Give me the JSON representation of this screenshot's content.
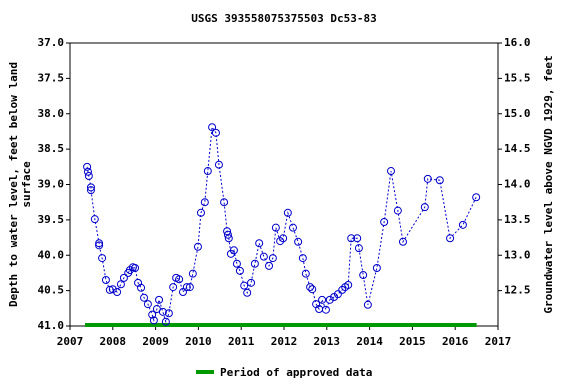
{
  "chart_data": {
    "type": "scatter",
    "title": "USGS 393558075375503 Dc53-83",
    "ylabel": "Depth to water level, feet below land surface",
    "y2label": "Groundwater level above NGVD 1929, feet",
    "xlim": [
      2007,
      2017
    ],
    "xticks": [
      2007,
      2008,
      2009,
      2010,
      2011,
      2012,
      2013,
      2014,
      2015,
      2016,
      2017
    ],
    "ylim": [
      41,
      37
    ],
    "y_inverted": true,
    "yticks": [
      {
        "value": 37,
        "label": "37.0"
      },
      {
        "value": 37.5,
        "label": "37.5"
      },
      {
        "value": 38,
        "label": "38.0"
      },
      {
        "value": 38.5,
        "label": "38.5"
      },
      {
        "value": 39,
        "label": "39.0"
      },
      {
        "value": 39.5,
        "label": "39.5"
      },
      {
        "value": 40,
        "label": "40.0"
      },
      {
        "value": 40.5,
        "label": "40.5"
      },
      {
        "value": 41,
        "label": "41.0"
      }
    ],
    "y2lim": [
      12,
      16
    ],
    "y2ticks": [
      {
        "value": 12.5,
        "label": "12.5"
      },
      {
        "value": 13,
        "label": "13.0"
      },
      {
        "value": 13.5,
        "label": "13.5"
      },
      {
        "value": 14,
        "label": "14.0"
      },
      {
        "value": 14.5,
        "label": "14.5"
      },
      {
        "value": 15,
        "label": "15.0"
      },
      {
        "value": 15.5,
        "label": "15.5"
      },
      {
        "value": 16,
        "label": "16.0"
      }
    ],
    "series": [
      {
        "color": "#0000cc",
        "x": [
          2007.4,
          2007.42,
          2007.44,
          2007.49,
          2007.49,
          2007.58,
          2007.68,
          2007.68,
          2007.75,
          2007.84,
          2007.93,
          2008.0,
          2008.1,
          2008.19,
          2008.26,
          2008.36,
          2008.4,
          2008.47,
          2008.52,
          2008.59,
          2008.66,
          2008.73,
          2008.82,
          2008.92,
          2008.96,
          2009.03,
          2009.08,
          2009.17,
          2009.24,
          2009.31,
          2009.41,
          2009.48,
          2009.55,
          2009.64,
          2009.73,
          2009.8,
          2009.87,
          2009.99,
          2010.06,
          2010.15,
          2010.22,
          2010.32,
          2010.41,
          2010.48,
          2010.6,
          2010.67,
          2010.69,
          2010.71,
          2010.76,
          2010.83,
          2010.9,
          2010.97,
          2011.07,
          2011.14,
          2011.23,
          2011.32,
          2011.42,
          2011.53,
          2011.65,
          2011.74,
          2011.81,
          2011.91,
          2011.98,
          2012.09,
          2012.21,
          2012.33,
          2012.44,
          2012.51,
          2012.61,
          2012.66,
          2012.75,
          2012.82,
          2012.89,
          2012.98,
          2013.07,
          2013.17,
          2013.26,
          2013.36,
          2013.43,
          2013.5,
          2013.57,
          2013.71,
          2013.75,
          2013.85,
          2013.96,
          2014.17,
          2014.34,
          2014.5,
          2014.66,
          2014.78,
          2015.29,
          2015.36,
          2015.64,
          2015.88,
          2016.18,
          2016.49
        ],
        "values": [
          38.75,
          38.82,
          38.88,
          39.04,
          39.08,
          39.49,
          39.83,
          39.86,
          40.04,
          40.35,
          40.49,
          40.48,
          40.52,
          40.41,
          40.32,
          40.25,
          40.21,
          40.17,
          40.18,
          40.39,
          40.46,
          40.6,
          40.69,
          40.84,
          40.92,
          40.76,
          40.63,
          40.8,
          40.94,
          40.82,
          40.45,
          40.32,
          40.34,
          40.52,
          40.45,
          40.45,
          40.26,
          39.88,
          39.4,
          39.25,
          38.81,
          38.19,
          38.27,
          38.72,
          39.25,
          39.66,
          39.71,
          39.76,
          39.98,
          39.93,
          40.12,
          40.22,
          40.43,
          40.53,
          40.39,
          40.12,
          39.83,
          40.02,
          40.15,
          40.04,
          39.61,
          39.8,
          39.76,
          39.4,
          39.61,
          39.81,
          40.04,
          40.26,
          40.45,
          40.48,
          40.69,
          40.76,
          40.63,
          40.77,
          40.63,
          40.59,
          40.55,
          40.49,
          40.45,
          40.42,
          39.76,
          39.76,
          39.9,
          40.28,
          40.7,
          40.18,
          39.53,
          38.81,
          39.37,
          39.81,
          39.32,
          38.92,
          38.94,
          39.76,
          39.57,
          39.18
        ]
      }
    ],
    "approved_period": [
      2007.35,
      2016.5
    ],
    "approved_color": "#009900",
    "legend": "Period of approved data"
  }
}
